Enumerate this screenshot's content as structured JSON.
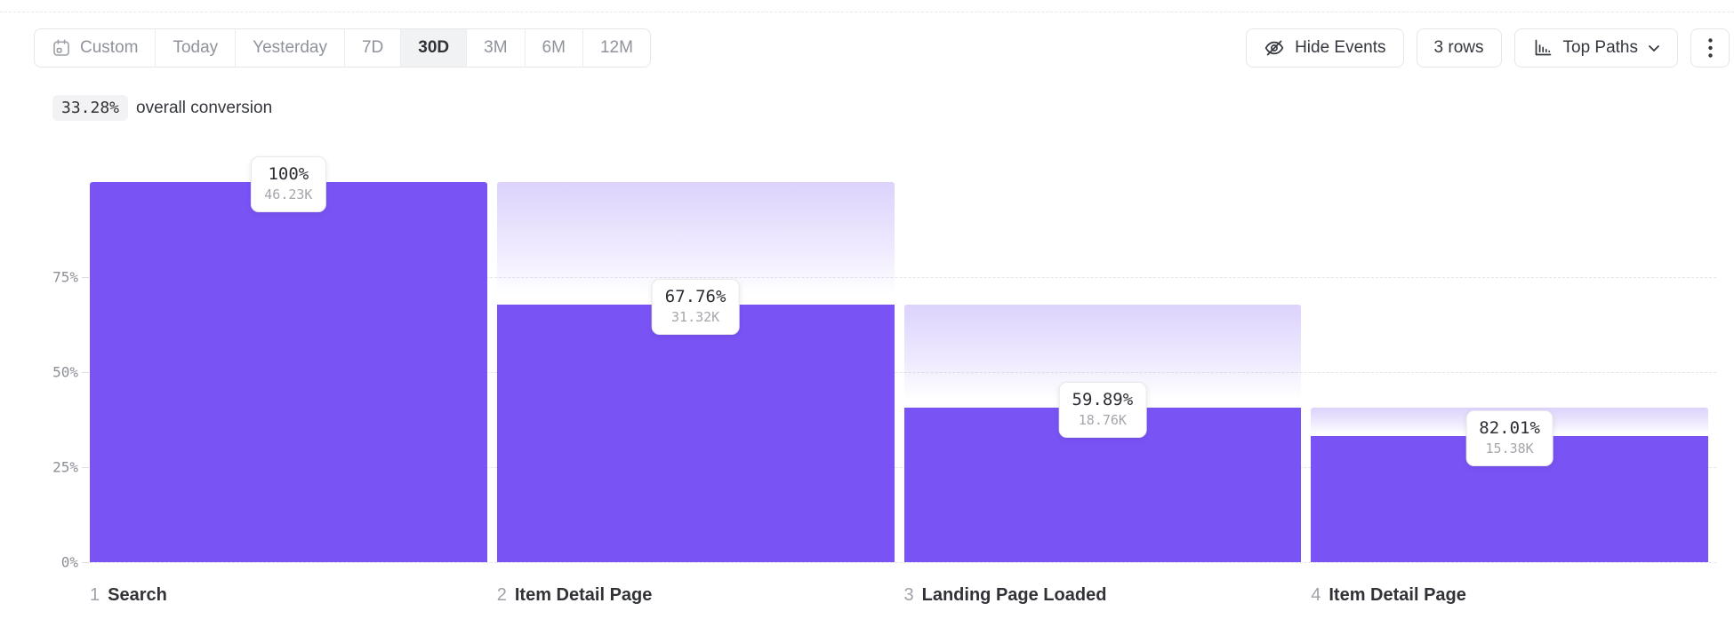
{
  "toolbar": {
    "date_ranges": [
      {
        "label": "Custom",
        "icon": "calendar-icon",
        "selected": false
      },
      {
        "label": "Today",
        "selected": false
      },
      {
        "label": "Yesterday",
        "selected": false
      },
      {
        "label": "7D",
        "selected": false
      },
      {
        "label": "30D",
        "selected": true
      },
      {
        "label": "3M",
        "selected": false
      },
      {
        "label": "6M",
        "selected": false
      },
      {
        "label": "12M",
        "selected": false
      }
    ],
    "hide_events_label": "Hide Events",
    "rows_label": "3 rows",
    "top_paths_label": "Top Paths",
    "icons": {
      "hide_events": "eye-off-icon",
      "top_paths": "bar-chart-icon",
      "top_paths_caret": "chevron-down-icon",
      "more": "kebab-menu-icon"
    }
  },
  "summary": {
    "conversion_value": "33.28%",
    "conversion_text": "overall conversion"
  },
  "chart_data": {
    "type": "bar",
    "subtype": "funnel",
    "title": "",
    "xlabel": "",
    "ylabel": "",
    "ylim": [
      0,
      100
    ],
    "grid": "dashed-horizontal",
    "yticks": [
      {
        "value": 75,
        "label": "75%"
      },
      {
        "value": 50,
        "label": "50%"
      },
      {
        "value": 25,
        "label": "25%"
      },
      {
        "value": 0,
        "label": "0%"
      }
    ],
    "bar_color": "#7a53f5",
    "steps": [
      {
        "number": "1",
        "name": "Search",
        "step_conversion": "100%",
        "count": "46.23K",
        "overall_pct": 100
      },
      {
        "number": "2",
        "name": "Item Detail Page",
        "step_conversion": "67.76%",
        "count": "31.32K",
        "overall_pct": 67.75
      },
      {
        "number": "3",
        "name": "Landing Page Loaded",
        "step_conversion": "59.89%",
        "count": "18.76K",
        "overall_pct": 40.58
      },
      {
        "number": "4",
        "name": "Item Detail Page",
        "step_conversion": "82.01%",
        "count": "15.38K",
        "overall_pct": 33.27
      }
    ]
  }
}
